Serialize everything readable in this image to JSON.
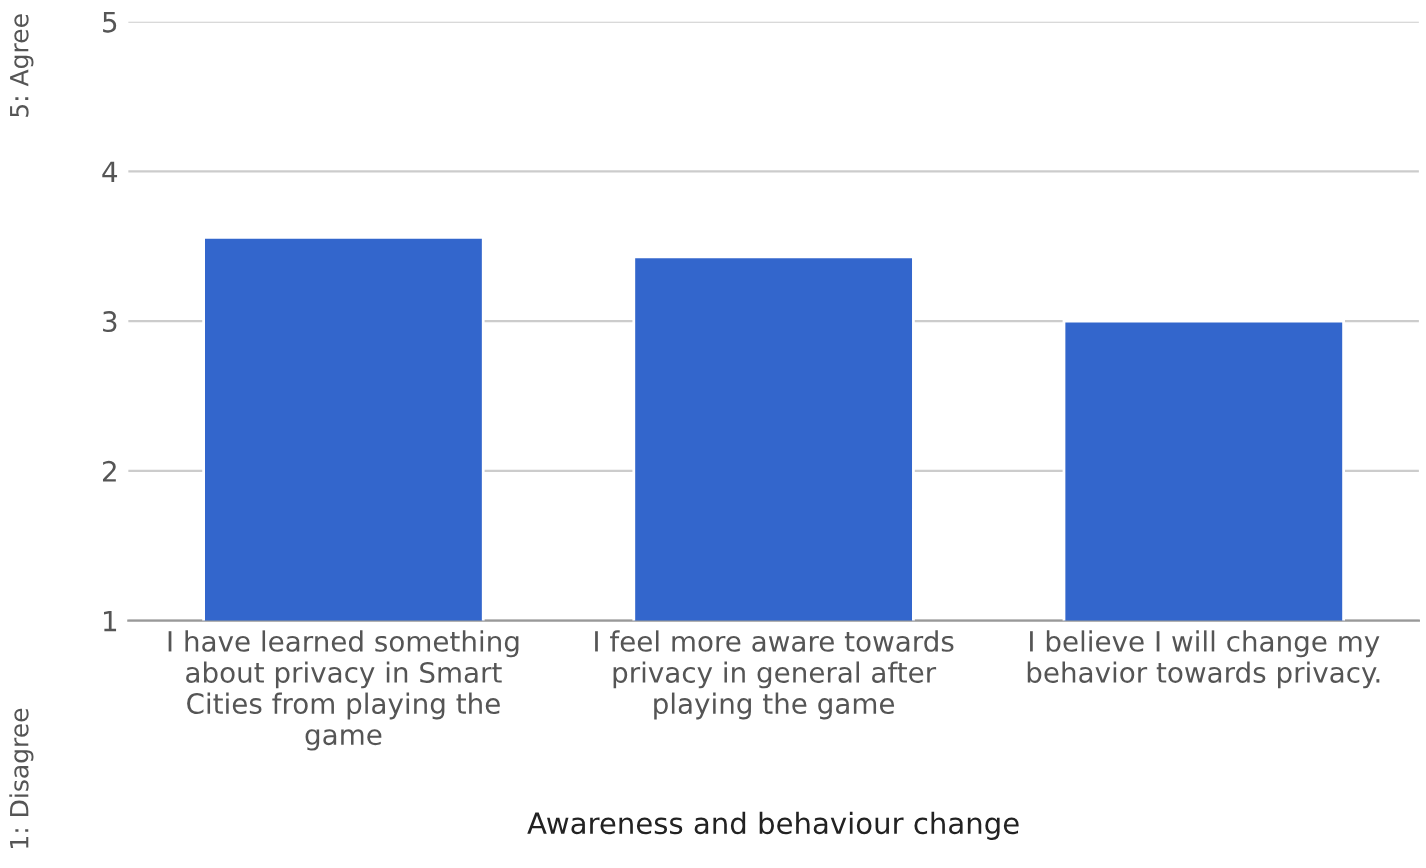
{
  "chart_data": {
    "type": "bar",
    "categories": [
      "I have learned something\nabout privacy in Smart\nCities from playing the\ngame",
      "I feel more aware towards\nprivacy in general after\nplaying the game",
      "I believe I will change my\nbehavior towards privacy."
    ],
    "values": [
      3.56,
      3.43,
      3.0
    ],
    "color": "#3366cc",
    "xlabel": "Awareness and behaviour change",
    "annotations": [
      "1: Disagree",
      "5: Agree"
    ],
    "ylim": [
      1,
      5
    ],
    "yticks": [
      1,
      2,
      3,
      4,
      5
    ],
    "grid": "y"
  }
}
